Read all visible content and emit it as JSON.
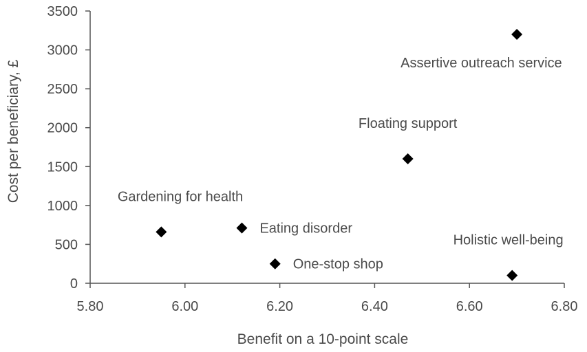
{
  "chart_data": {
    "type": "scatter",
    "title": "",
    "xlabel": "Benefit on a 10-point scale",
    "ylabel": "Cost per beneficiary, £",
    "xlim": [
      5.8,
      6.8
    ],
    "ylim": [
      0,
      3500
    ],
    "x_ticks": [
      "5.80",
      "6.00",
      "6.20",
      "6.40",
      "6.60",
      "6.80"
    ],
    "y_ticks": [
      "0",
      "500",
      "1000",
      "1500",
      "2000",
      "2500",
      "3000",
      "3500"
    ],
    "grid": false,
    "legend": "none",
    "marker": "diamond",
    "colors": {
      "marker": "#000000",
      "axis": "#555555",
      "text": "#4a4a4a"
    },
    "points": [
      {
        "label": "Gardening for health",
        "x": 5.95,
        "y": 660,
        "label_pos": "above"
      },
      {
        "label": "Eating disorder",
        "x": 6.12,
        "y": 710,
        "label_pos": "right"
      },
      {
        "label": "One-stop shop",
        "x": 6.19,
        "y": 250,
        "label_pos": "right"
      },
      {
        "label": "Floating support",
        "x": 6.47,
        "y": 1600,
        "label_pos": "above"
      },
      {
        "label": "Assertive outreach service",
        "x": 6.7,
        "y": 3200,
        "label_pos": "below"
      },
      {
        "label": "Holistic well-being",
        "x": 6.69,
        "y": 100,
        "label_pos": "above"
      }
    ]
  }
}
